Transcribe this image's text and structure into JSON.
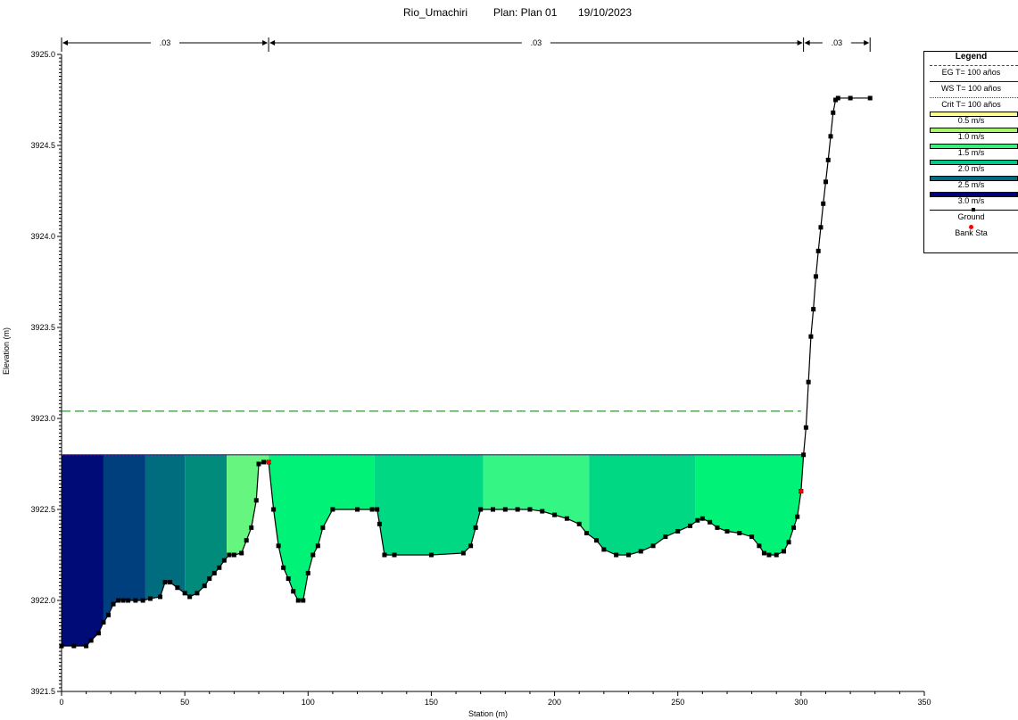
{
  "header": {
    "river": "Rio_Umachiri",
    "plan": "Plan: Plan 01",
    "date": "19/10/2023"
  },
  "chart_data": {
    "type": "area",
    "xlabel": "Station (m)",
    "ylabel": "Elevation (m)",
    "xlim": [
      0,
      350
    ],
    "ylim": [
      3921.5,
      3925.0
    ],
    "xticks": [
      "0",
      "50",
      "100",
      "150",
      "200",
      "250",
      "300",
      "350"
    ],
    "yticks": [
      "3921.5",
      "3922.0",
      "3922.5",
      "3923.0",
      "3923.5",
      "3924.0",
      "3924.5",
      "3925.0"
    ],
    "mannings_n": [
      {
        "label": ".03",
        "from": 0,
        "to": 84
      },
      {
        "label": ".03",
        "from": 84,
        "to": 301
      },
      {
        "label": ".03",
        "from": 301,
        "to": 328
      }
    ],
    "eg_elevation": 3923.04,
    "ws_elevation": 3922.8,
    "crit_elevation": 3922.8,
    "bank_stations": [
      {
        "x": 84,
        "y": 3922.76
      },
      {
        "x": 300,
        "y": 3922.6
      }
    ],
    "ground": {
      "x": [
        0,
        5,
        10,
        12,
        15,
        17,
        19,
        21,
        23,
        25,
        27,
        30,
        33,
        36,
        40,
        42,
        44,
        47,
        50,
        52,
        55,
        58,
        60,
        62,
        64,
        66,
        68,
        70,
        73,
        75,
        77,
        79,
        80,
        82,
        84,
        86,
        88,
        90,
        92,
        94,
        96,
        98,
        100,
        102,
        104,
        106,
        110,
        120,
        126,
        128,
        129,
        131,
        135,
        150,
        163,
        166,
        168,
        170,
        175,
        180,
        185,
        190,
        195,
        200,
        205,
        210,
        213,
        217,
        220,
        225,
        230,
        235,
        240,
        245,
        250,
        255,
        258,
        260,
        263,
        266,
        270,
        275,
        280,
        283,
        285,
        287,
        290,
        293,
        295,
        297,
        298.5,
        300,
        301,
        302,
        303,
        304,
        305,
        306,
        307,
        308,
        309,
        310,
        311,
        312,
        313,
        314,
        315,
        320,
        328
      ],
      "y": [
        3921.75,
        3921.75,
        3921.75,
        3921.78,
        3921.82,
        3921.88,
        3921.92,
        3921.98,
        3922.0,
        3922.0,
        3922.0,
        3922.0,
        3922.0,
        3922.01,
        3922.02,
        3922.1,
        3922.1,
        3922.07,
        3922.04,
        3922.02,
        3922.04,
        3922.08,
        3922.12,
        3922.15,
        3922.18,
        3922.22,
        3922.25,
        3922.25,
        3922.26,
        3922.33,
        3922.4,
        3922.55,
        3922.75,
        3922.76,
        3922.76,
        3922.5,
        3922.3,
        3922.18,
        3922.12,
        3922.05,
        3922.0,
        3922.0,
        3922.15,
        3922.25,
        3922.3,
        3922.4,
        3922.5,
        3922.5,
        3922.5,
        3922.5,
        3922.42,
        3922.25,
        3922.25,
        3922.25,
        3922.26,
        3922.3,
        3922.4,
        3922.5,
        3922.5,
        3922.5,
        3922.5,
        3922.5,
        3922.49,
        3922.47,
        3922.45,
        3922.42,
        3922.37,
        3922.33,
        3922.28,
        3922.25,
        3922.25,
        3922.27,
        3922.3,
        3922.35,
        3922.38,
        3922.41,
        3922.44,
        3922.45,
        3922.43,
        3922.4,
        3922.38,
        3922.37,
        3922.35,
        3922.3,
        3922.26,
        3922.25,
        3922.25,
        3922.27,
        3922.32,
        3922.4,
        3922.46,
        3922.6,
        3922.8,
        3922.95,
        3923.2,
        3923.45,
        3923.6,
        3923.78,
        3923.92,
        3924.05,
        3924.18,
        3924.3,
        3924.42,
        3924.55,
        3924.68,
        3924.75,
        3924.76,
        3924.76,
        3924.76
      ]
    },
    "velocity_bands": [
      {
        "from": 0,
        "to": 17,
        "color": "#000b77"
      },
      {
        "from": 17,
        "to": 34,
        "color": "#003f7e"
      },
      {
        "from": 34,
        "to": 50,
        "color": "#006d7e"
      },
      {
        "from": 50,
        "to": 67,
        "color": "#008b7b"
      },
      {
        "from": 67,
        "to": 84,
        "color": "#66f680"
      },
      {
        "from": 84,
        "to": 127,
        "color": "#00f277"
      },
      {
        "from": 127,
        "to": 171,
        "color": "#00d883"
      },
      {
        "from": 171,
        "to": 214,
        "color": "#35f684"
      },
      {
        "from": 214,
        "to": 257,
        "color": "#00d883"
      },
      {
        "from": 257,
        "to": 301,
        "color": "#00f277"
      }
    ]
  },
  "legend": {
    "title": "Legend",
    "items": [
      {
        "label": "EG T= 100 años",
        "kind": "dash",
        "color": "#007a00"
      },
      {
        "label": "WS T= 100 años",
        "kind": "line",
        "color": "#0000ff"
      },
      {
        "label": "Crit T= 100 años",
        "kind": "dot",
        "color": "#ff0000"
      },
      {
        "label": "0.5 m/s",
        "kind": "fill",
        "color": "#ffff8a"
      },
      {
        "label": "1.0 m/s",
        "kind": "fill",
        "color": "#a6f56a"
      },
      {
        "label": "1.5 m/s",
        "kind": "fill",
        "color": "#3af07a"
      },
      {
        "label": "2.0 m/s",
        "kind": "fill",
        "color": "#00c88a"
      },
      {
        "label": "2.5 m/s",
        "kind": "fill",
        "color": "#006a82"
      },
      {
        "label": "3.0 m/s",
        "kind": "fill",
        "color": "#00007a"
      },
      {
        "label": "Ground",
        "kind": "ground",
        "color": "#000000"
      },
      {
        "label": "Bank Sta",
        "kind": "bank",
        "color": "#ff0000"
      }
    ]
  }
}
